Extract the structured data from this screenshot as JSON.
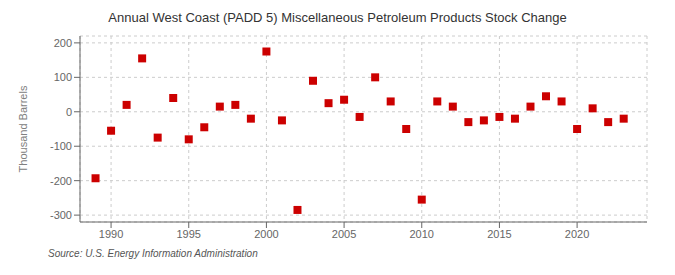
{
  "chart_data": {
    "type": "scatter",
    "title": "Annual West Coast (PADD 5) Miscellaneous Petroleum Products Stock Change",
    "y_label": "Thousand Barrels",
    "annotations": [
      "Source: U.S. Energy Information Administration"
    ],
    "x": [
      1989,
      1990,
      1991,
      1992,
      1993,
      1994,
      1995,
      1996,
      1997,
      1998,
      1999,
      2000,
      2001,
      2002,
      2003,
      2004,
      2005,
      2006,
      2007,
      2008,
      2009,
      2010,
      2011,
      2012,
      2013,
      2014,
      2015,
      2016,
      2017,
      2018,
      2019,
      2020,
      2021,
      2022,
      2023
    ],
    "values": [
      -193,
      -55,
      20,
      155,
      -75,
      40,
      -80,
      -45,
      15,
      20,
      -20,
      175,
      -25,
      -285,
      90,
      25,
      35,
      -15,
      100,
      30,
      -50,
      -255,
      30,
      15,
      -30,
      -25,
      -15,
      -20,
      15,
      45,
      30,
      -50,
      10,
      -30,
      -20
    ],
    "color": "#cc0000",
    "marker": "square",
    "xlim": [
      1988.0,
      2024.5
    ],
    "xticks": [
      1990,
      1995,
      2000,
      2005,
      2010,
      2015,
      2020
    ],
    "ylim": [
      -320,
      220
    ],
    "yticks": [
      -300,
      -200,
      -100,
      0,
      100,
      200
    ],
    "grid": true
  }
}
